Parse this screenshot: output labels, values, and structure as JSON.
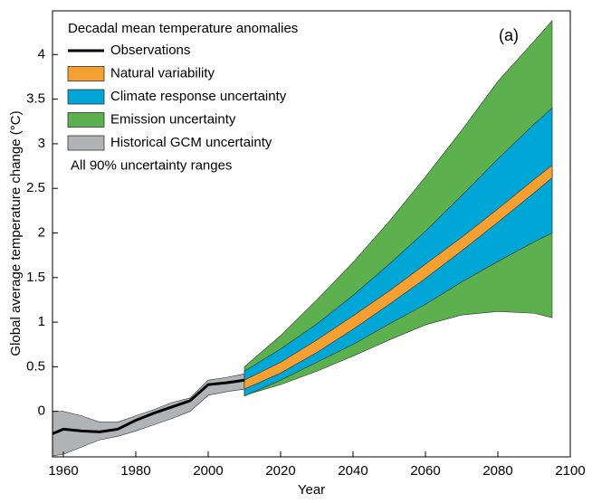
{
  "chart_data": {
    "type": "band",
    "xlabel": "Year",
    "ylabel": "Global average temperature change (°C)",
    "panel_label": "(a)",
    "legend_title": "Decadal mean temperature anomalies",
    "legend_note": "All 90% uncertainty ranges",
    "legend": "upper left",
    "xlim": [
      1957,
      2100
    ],
    "xticks": [
      1960,
      1980,
      2000,
      2020,
      2040,
      2060,
      2080,
      2100
    ],
    "ylim": [
      -0.51,
      4.49
    ],
    "yticks": [
      0,
      0.5,
      1,
      1.5,
      2,
      2.5,
      3,
      3.5,
      4
    ],
    "series": [
      {
        "name": "Observations",
        "kind": "line",
        "color": "#000000",
        "x": [
          1957,
          1960,
          1965,
          1970,
          1975,
          1980,
          1985,
          1990,
          1995,
          2000,
          2005,
          2010
        ],
        "values": [
          -0.25,
          -0.2,
          -0.22,
          -0.23,
          -0.2,
          -0.1,
          -0.02,
          0.05,
          0.12,
          0.3,
          0.32,
          0.35
        ]
      },
      {
        "name": "Natural variability",
        "kind": "band",
        "color": "#f7a032",
        "x": [
          2010,
          2020,
          2030,
          2040,
          2050,
          2060,
          2070,
          2080,
          2090,
          2095
        ],
        "upper": [
          0.35,
          0.55,
          0.8,
          1.07,
          1.35,
          1.65,
          1.95,
          2.27,
          2.6,
          2.76
        ],
        "lower": [
          0.25,
          0.43,
          0.66,
          0.92,
          1.2,
          1.49,
          1.8,
          2.12,
          2.45,
          2.62
        ]
      },
      {
        "name": "Climate response uncertainty",
        "kind": "band",
        "color": "#00a6d6",
        "x": [
          2010,
          2020,
          2030,
          2040,
          2050,
          2060,
          2070,
          2080,
          2090,
          2095
        ],
        "upper": [
          0.45,
          0.7,
          0.98,
          1.3,
          1.65,
          2.02,
          2.42,
          2.83,
          3.22,
          3.4
        ],
        "lower": [
          0.17,
          0.35,
          0.55,
          0.75,
          0.98,
          1.2,
          1.45,
          1.68,
          1.9,
          2.0
        ]
      },
      {
        "name": "Emission uncertainty",
        "kind": "band",
        "color": "#5cb04e",
        "x": [
          2010,
          2020,
          2030,
          2040,
          2050,
          2060,
          2070,
          2080,
          2090,
          2095
        ],
        "upper": [
          0.5,
          0.85,
          1.25,
          1.67,
          2.13,
          2.63,
          3.15,
          3.7,
          4.15,
          4.38
        ],
        "lower": [
          0.18,
          0.3,
          0.45,
          0.62,
          0.8,
          0.97,
          1.08,
          1.12,
          1.1,
          1.05
        ]
      },
      {
        "name": "Historical GCM uncertainty",
        "kind": "band",
        "color": "#b1b3b6",
        "x": [
          1957,
          1960,
          1965,
          1970,
          1975,
          1980,
          1985,
          1990,
          1995,
          2000,
          2005,
          2010
        ],
        "upper": [
          0.0,
          0.0,
          -0.05,
          -0.12,
          -0.12,
          -0.05,
          0.02,
          0.1,
          0.15,
          0.35,
          0.38,
          0.42
        ],
        "lower": [
          -0.5,
          -0.48,
          -0.4,
          -0.32,
          -0.28,
          -0.22,
          -0.15,
          -0.08,
          0.0,
          0.18,
          0.22,
          0.25
        ]
      }
    ]
  }
}
